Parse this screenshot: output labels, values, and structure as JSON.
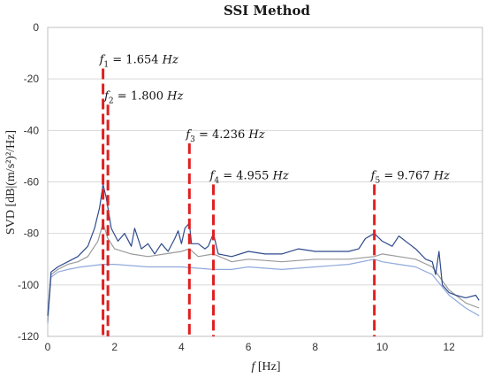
{
  "chart_data": {
    "type": "line",
    "title": "SSI Method",
    "xlabel_italic": "f",
    "xlabel_rest": " [Hz]",
    "ylabel": "SVD [dB|(m/s²)²/Hz]",
    "xlim": [
      0,
      13
    ],
    "ylim": [
      -120,
      0
    ],
    "x_ticks": [
      0,
      2,
      4,
      6,
      8,
      10,
      12
    ],
    "y_ticks": [
      0,
      -20,
      -40,
      -60,
      -80,
      -100,
      -120
    ],
    "grid": "horizontal",
    "series": [
      {
        "color": "#2e4a8c",
        "x": [
          0,
          0.1,
          0.3,
          0.6,
          0.9,
          1.2,
          1.4,
          1.55,
          1.654,
          1.75,
          1.8,
          1.9,
          2.1,
          2.3,
          2.5,
          2.6,
          2.8,
          3.0,
          3.2,
          3.4,
          3.6,
          3.8,
          3.9,
          4.0,
          4.1,
          4.236,
          4.3,
          4.5,
          4.7,
          4.8,
          4.955,
          5.1,
          5.5,
          6.0,
          6.5,
          7.0,
          7.5,
          8.0,
          8.5,
          9.0,
          9.3,
          9.5,
          9.767,
          10.0,
          10.3,
          10.5,
          10.8,
          11.0,
          11.3,
          11.5,
          11.6,
          11.7,
          11.8,
          12.0,
          12.2,
          12.5,
          12.8,
          12.9
        ],
        "y": [
          -112,
          -95,
          -93,
          -91,
          -89,
          -85,
          -78,
          -70,
          -61,
          -66,
          -70,
          -78,
          -83,
          -80,
          -85,
          -78,
          -86,
          -84,
          -88,
          -84,
          -87,
          -82,
          -79,
          -84,
          -78,
          -76,
          -84,
          -84,
          -86,
          -85,
          -80,
          -88,
          -89,
          -87,
          -88,
          -88,
          -86,
          -87,
          -87,
          -87,
          -86,
          -82,
          -80,
          -83,
          -85,
          -81,
          -84,
          -86,
          -90,
          -91,
          -96,
          -87,
          -100,
          -103,
          -104,
          -105,
          -104,
          -106
        ]
      },
      {
        "color": "#9a9a9a",
        "x": [
          0,
          0.1,
          0.3,
          0.6,
          0.9,
          1.2,
          1.5,
          1.654,
          1.8,
          2.0,
          2.5,
          3.0,
          3.5,
          4.0,
          4.236,
          4.5,
          4.955,
          5.5,
          6.0,
          7.0,
          8.0,
          9.0,
          9.767,
          10.0,
          10.5,
          11.0,
          11.5,
          12.0,
          12.5,
          12.9
        ],
        "y": [
          -114,
          -96,
          -94,
          -92,
          -91,
          -89,
          -83,
          -76,
          -82,
          -86,
          -88,
          -89,
          -88,
          -87,
          -86,
          -89,
          -88,
          -91,
          -90,
          -91,
          -90,
          -90,
          -89,
          -88,
          -89,
          -90,
          -93,
          -102,
          -107,
          -109
        ]
      },
      {
        "color": "#8faadc",
        "x": [
          0,
          0.1,
          0.3,
          0.6,
          1.0,
          1.654,
          2.0,
          3.0,
          4.0,
          4.955,
          5.5,
          6.0,
          7.0,
          8.0,
          9.0,
          9.767,
          10.0,
          10.5,
          11.0,
          11.5,
          12.0,
          12.5,
          12.9
        ],
        "y": [
          -115,
          -97,
          -95,
          -94,
          -93,
          -92,
          -92,
          -93,
          -93,
          -94,
          -94,
          -93,
          -94,
          -93,
          -92,
          -90,
          -91,
          -92,
          -93,
          -96,
          -104,
          -109,
          -112
        ]
      }
    ],
    "peaks": [
      {
        "sym": "f",
        "sub": "1",
        "text": " = 1.654 ",
        "unit": "Hz",
        "x": 1.654,
        "y_top": -16
      },
      {
        "sym": "f",
        "sub": "2",
        "text": " = 1.800 ",
        "unit": "Hz",
        "x": 1.8,
        "y_top": -30
      },
      {
        "sym": "f",
        "sub": "3",
        "text": " = 4.236 ",
        "unit": "Hz",
        "x": 4.236,
        "y_top": -45
      },
      {
        "sym": "f",
        "sub": "4",
        "text": " = 4.955 ",
        "unit": "Hz",
        "x": 4.955,
        "y_top": -61
      },
      {
        "sym": "f",
        "sub": "5",
        "text": " = 9.767 ",
        "unit": "Hz",
        "x": 9.767,
        "y_top": -61
      }
    ],
    "peak_line_color": "#e02020"
  }
}
